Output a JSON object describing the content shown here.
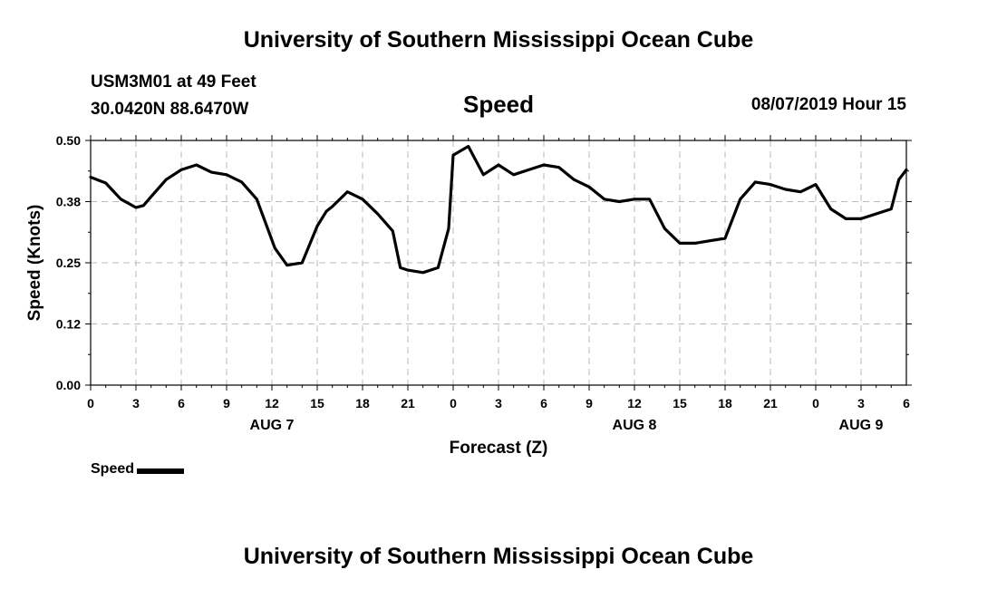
{
  "header": {
    "title": "University of Southern Mississippi Ocean Cube",
    "station_line1": "USM3M01 at 49 Feet",
    "station_line2": "30.0420N 88.6470W",
    "chart_title": "Speed",
    "date_hour": "08/07/2019 Hour 15"
  },
  "footer": {
    "title": "University of Southern Mississippi Ocean Cube"
  },
  "legend": {
    "label": "Speed"
  },
  "chart_data": {
    "type": "line",
    "title": "Speed",
    "ylabel": "Speed (Knots)",
    "xlabel": "Forecast (Z)",
    "ylim": [
      0,
      0.5
    ],
    "yticks": [
      "0.00",
      "0.12",
      "0.25",
      "0.38",
      "0.50"
    ],
    "xlim": [
      0,
      54
    ],
    "xtick_labels": [
      "0",
      "3",
      "6",
      "9",
      "12",
      "15",
      "18",
      "21",
      "0",
      "3",
      "6",
      "9",
      "12",
      "15",
      "18",
      "21",
      "0",
      "3",
      "6"
    ],
    "date_labels": [
      {
        "label": "AUG 7",
        "at": 12
      },
      {
        "label": "AUG 8",
        "at": 36
      },
      {
        "label": "AUG 9",
        "at": 51
      }
    ],
    "grid": true,
    "line_color": "#000000",
    "series": [
      {
        "name": "Speed",
        "x": [
          0,
          1,
          2,
          3,
          3.5,
          4,
          5,
          6,
          7,
          8,
          9,
          10,
          11,
          11.6,
          12.2,
          13,
          14,
          15,
          15.6,
          16,
          17,
          18,
          19,
          20,
          20.5,
          21,
          22,
          23,
          23.7,
          24,
          25,
          26,
          27,
          28,
          29,
          30,
          31,
          32,
          33,
          34,
          35,
          36,
          37,
          38,
          39,
          40,
          41,
          42,
          43,
          44,
          45,
          46,
          47,
          48,
          49,
          50,
          51,
          52,
          53,
          53.5,
          54
        ],
        "values": [
          0.425,
          0.413,
          0.38,
          0.363,
          0.367,
          0.385,
          0.42,
          0.44,
          0.45,
          0.435,
          0.43,
          0.415,
          0.38,
          0.33,
          0.28,
          0.245,
          0.25,
          0.325,
          0.355,
          0.365,
          0.395,
          0.38,
          0.35,
          0.315,
          0.24,
          0.235,
          0.23,
          0.24,
          0.32,
          0.47,
          0.488,
          0.43,
          0.45,
          0.43,
          0.44,
          0.45,
          0.445,
          0.42,
          0.405,
          0.38,
          0.375,
          0.38,
          0.38,
          0.32,
          0.29,
          0.29,
          0.295,
          0.3,
          0.38,
          0.415,
          0.41,
          0.4,
          0.395,
          0.41,
          0.36,
          0.34,
          0.34,
          0.35,
          0.36,
          0.42,
          0.44
        ]
      }
    ]
  }
}
